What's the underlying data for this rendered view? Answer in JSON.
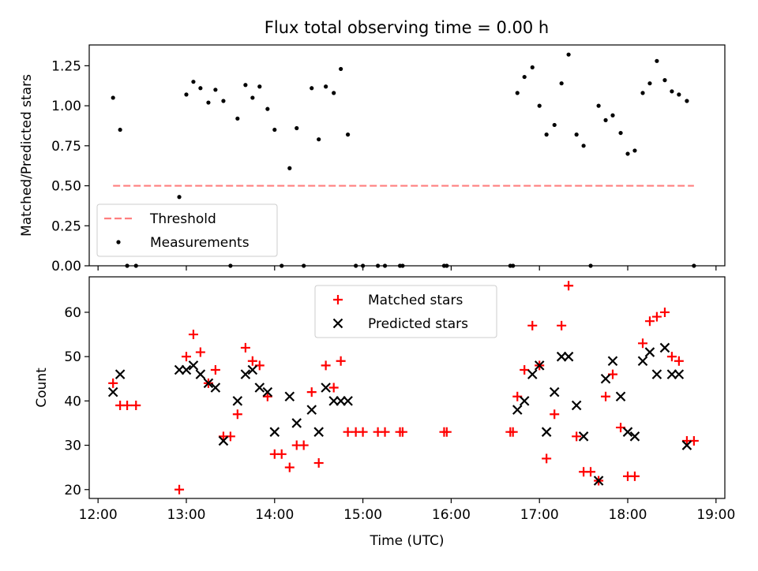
{
  "chart_data": [
    {
      "type": "scatter",
      "title": "Flux total observing time = 0.00 h",
      "xlabel": "",
      "ylabel": "Matched/Predicted stars",
      "xlim": [
        11.9,
        19.1
      ],
      "ylim": [
        0.0,
        1.38
      ],
      "yticks": [
        0.0,
        0.25,
        0.5,
        0.75,
        1.0,
        1.25
      ],
      "ytick_labels": [
        "0.00",
        "0.25",
        "0.50",
        "0.75",
        "1.00",
        "1.25"
      ],
      "legend": {
        "placement": "lower-left",
        "entries": [
          "Threshold",
          "Measurements"
        ]
      },
      "threshold": {
        "name": "Threshold",
        "value": 0.5,
        "x": [
          12.17,
          18.75
        ],
        "color": "#ff7f7f",
        "style": "dashed"
      },
      "series": [
        {
          "name": "Measurements",
          "color": "#000000",
          "points": [
            [
              12.17,
              1.05
            ],
            [
              12.25,
              0.85
            ],
            [
              12.33,
              0.0
            ],
            [
              12.43,
              0.0
            ],
            [
              12.92,
              0.43
            ],
            [
              13.0,
              1.07
            ],
            [
              13.08,
              1.15
            ],
            [
              13.16,
              1.11
            ],
            [
              13.25,
              1.02
            ],
            [
              13.33,
              1.1
            ],
            [
              13.42,
              1.03
            ],
            [
              13.5,
              0.0
            ],
            [
              13.58,
              0.92
            ],
            [
              13.67,
              1.13
            ],
            [
              13.75,
              1.05
            ],
            [
              13.83,
              1.12
            ],
            [
              13.92,
              0.98
            ],
            [
              14.0,
              0.85
            ],
            [
              14.08,
              0.0
            ],
            [
              14.17,
              0.61
            ],
            [
              14.25,
              0.86
            ],
            [
              14.33,
              0.0
            ],
            [
              14.42,
              1.11
            ],
            [
              14.5,
              0.79
            ],
            [
              14.58,
              1.12
            ],
            [
              14.67,
              1.08
            ],
            [
              14.75,
              1.23
            ],
            [
              14.83,
              0.82
            ],
            [
              14.92,
              0.0
            ],
            [
              15.0,
              0.0
            ],
            [
              15.17,
              0.0
            ],
            [
              15.25,
              0.0
            ],
            [
              15.42,
              0.0
            ],
            [
              15.45,
              0.0
            ],
            [
              15.92,
              0.0
            ],
            [
              15.95,
              0.0
            ],
            [
              16.67,
              0.0
            ],
            [
              16.7,
              0.0
            ],
            [
              16.75,
              1.08
            ],
            [
              16.83,
              1.18
            ],
            [
              16.92,
              1.24
            ],
            [
              17.0,
              1.0
            ],
            [
              17.08,
              0.82
            ],
            [
              17.17,
              0.88
            ],
            [
              17.25,
              1.14
            ],
            [
              17.33,
              1.32
            ],
            [
              17.42,
              0.82
            ],
            [
              17.5,
              0.75
            ],
            [
              17.58,
              0.0
            ],
            [
              17.67,
              1.0
            ],
            [
              17.75,
              0.91
            ],
            [
              17.83,
              0.94
            ],
            [
              17.92,
              0.83
            ],
            [
              18.0,
              0.7
            ],
            [
              18.08,
              0.72
            ],
            [
              18.17,
              1.08
            ],
            [
              18.25,
              1.14
            ],
            [
              18.33,
              1.28
            ],
            [
              18.42,
              1.16
            ],
            [
              18.5,
              1.09
            ],
            [
              18.58,
              1.07
            ],
            [
              18.67,
              1.03
            ],
            [
              18.75,
              0.0
            ]
          ]
        }
      ]
    },
    {
      "type": "scatter",
      "title": "",
      "xlabel": "Time (UTC)",
      "ylabel": "Count",
      "xlim": [
        11.9,
        19.1
      ],
      "ylim": [
        18,
        68
      ],
      "yticks": [
        20,
        30,
        40,
        50,
        60
      ],
      "ytick_labels": [
        "20",
        "30",
        "40",
        "50",
        "60"
      ],
      "xticks": [
        12,
        13,
        14,
        15,
        16,
        17,
        18,
        19
      ],
      "xtick_labels": [
        "12:00",
        "13:00",
        "14:00",
        "15:00",
        "16:00",
        "17:00",
        "18:00",
        "19:00"
      ],
      "legend": {
        "placement": "top-center",
        "entries": [
          "Matched stars",
          "Predicted stars"
        ]
      },
      "series": [
        {
          "name": "Matched stars",
          "marker": "plus",
          "color": "#ff0000",
          "points": [
            [
              12.17,
              44
            ],
            [
              12.25,
              39
            ],
            [
              12.33,
              39
            ],
            [
              12.43,
              39
            ],
            [
              12.92,
              20
            ],
            [
              13.0,
              50
            ],
            [
              13.08,
              55
            ],
            [
              13.16,
              51
            ],
            [
              13.25,
              44
            ],
            [
              13.33,
              47
            ],
            [
              13.42,
              32
            ],
            [
              13.5,
              32
            ],
            [
              13.58,
              37
            ],
            [
              13.67,
              52
            ],
            [
              13.75,
              49
            ],
            [
              13.83,
              48
            ],
            [
              13.92,
              41
            ],
            [
              14.0,
              28
            ],
            [
              14.08,
              28
            ],
            [
              14.17,
              25
            ],
            [
              14.25,
              30
            ],
            [
              14.33,
              30
            ],
            [
              14.42,
              42
            ],
            [
              14.5,
              26
            ],
            [
              14.58,
              48
            ],
            [
              14.67,
              43
            ],
            [
              14.75,
              49
            ],
            [
              14.83,
              33
            ],
            [
              14.92,
              33
            ],
            [
              15.0,
              33
            ],
            [
              15.17,
              33
            ],
            [
              15.25,
              33
            ],
            [
              15.42,
              33
            ],
            [
              15.45,
              33
            ],
            [
              15.92,
              33
            ],
            [
              15.95,
              33
            ],
            [
              16.67,
              33
            ],
            [
              16.7,
              33
            ],
            [
              16.75,
              41
            ],
            [
              16.83,
              47
            ],
            [
              16.92,
              57
            ],
            [
              17.0,
              48
            ],
            [
              17.08,
              27
            ],
            [
              17.17,
              37
            ],
            [
              17.25,
              57
            ],
            [
              17.33,
              66
            ],
            [
              17.42,
              32
            ],
            [
              17.5,
              24
            ],
            [
              17.58,
              24
            ],
            [
              17.67,
              22
            ],
            [
              17.75,
              41
            ],
            [
              17.83,
              46
            ],
            [
              17.92,
              34
            ],
            [
              18.0,
              23
            ],
            [
              18.08,
              23
            ],
            [
              18.17,
              53
            ],
            [
              18.25,
              58
            ],
            [
              18.33,
              59
            ],
            [
              18.42,
              60
            ],
            [
              18.5,
              50
            ],
            [
              18.58,
              49
            ],
            [
              18.67,
              31
            ],
            [
              18.75,
              31
            ]
          ]
        },
        {
          "name": "Predicted stars",
          "marker": "x",
          "color": "#000000",
          "points": [
            [
              12.17,
              42
            ],
            [
              12.25,
              46
            ],
            [
              12.92,
              47
            ],
            [
              13.0,
              47
            ],
            [
              13.08,
              48
            ],
            [
              13.16,
              46
            ],
            [
              13.25,
              44
            ],
            [
              13.33,
              43
            ],
            [
              13.42,
              31
            ],
            [
              13.58,
              40
            ],
            [
              13.67,
              46
            ],
            [
              13.75,
              47
            ],
            [
              13.83,
              43
            ],
            [
              13.92,
              42
            ],
            [
              14.0,
              33
            ],
            [
              14.17,
              41
            ],
            [
              14.25,
              35
            ],
            [
              14.42,
              38
            ],
            [
              14.5,
              33
            ],
            [
              14.58,
              43
            ],
            [
              14.67,
              40
            ],
            [
              14.75,
              40
            ],
            [
              14.83,
              40
            ],
            [
              16.75,
              38
            ],
            [
              16.83,
              40
            ],
            [
              16.92,
              46
            ],
            [
              17.0,
              48
            ],
            [
              17.08,
              33
            ],
            [
              17.17,
              42
            ],
            [
              17.25,
              50
            ],
            [
              17.33,
              50
            ],
            [
              17.42,
              39
            ],
            [
              17.5,
              32
            ],
            [
              17.67,
              22
            ],
            [
              17.75,
              45
            ],
            [
              17.83,
              49
            ],
            [
              17.92,
              41
            ],
            [
              18.0,
              33
            ],
            [
              18.08,
              32
            ],
            [
              18.17,
              49
            ],
            [
              18.25,
              51
            ],
            [
              18.33,
              46
            ],
            [
              18.42,
              52
            ],
            [
              18.5,
              46
            ],
            [
              18.58,
              46
            ],
            [
              18.67,
              30
            ]
          ]
        }
      ]
    }
  ]
}
